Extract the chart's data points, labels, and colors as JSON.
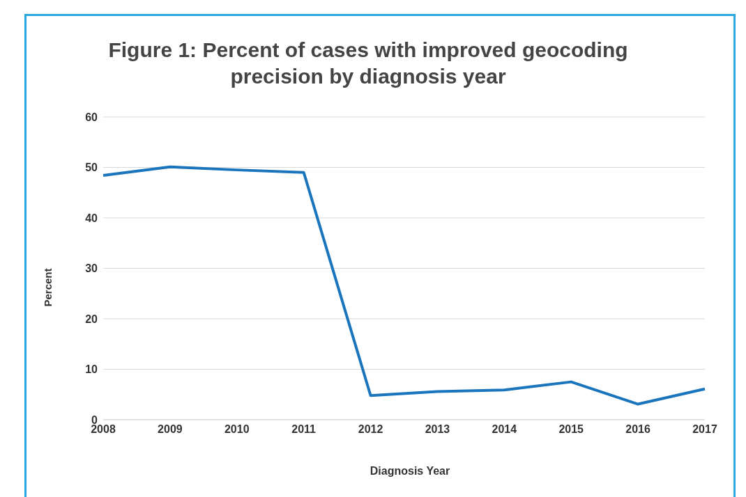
{
  "chart_data": {
    "type": "line",
    "title": "Figure 1: Percent of cases with improved geocoding precision by diagnosis year",
    "xlabel": "Diagnosis Year",
    "ylabel": "Percent",
    "categories": [
      "2008",
      "2009",
      "2010",
      "2011",
      "2012",
      "2013",
      "2014",
      "2015",
      "2016",
      "2017"
    ],
    "series": [
      {
        "color": "#1b75bc",
        "values": [
          48.4,
          50.1,
          49.5,
          49.0,
          4.8,
          5.6,
          5.9,
          7.5,
          3.1,
          6.1
        ]
      }
    ],
    "ylim": [
      0,
      60
    ],
    "yticks": [
      0,
      10,
      20,
      30,
      40,
      50,
      60
    ],
    "grid": "y",
    "legend": false,
    "marker": "none",
    "line_style": "solid"
  }
}
